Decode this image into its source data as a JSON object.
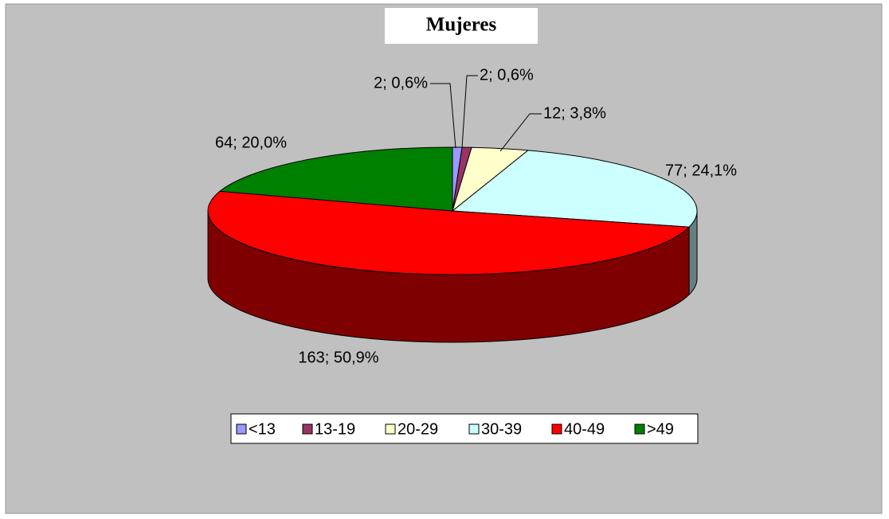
{
  "chart_data": {
    "type": "pie",
    "title": "Mujeres",
    "categories": [
      "<13",
      "13-19",
      "20-29",
      "30-39",
      "40-49",
      ">49"
    ],
    "values": [
      2,
      2,
      12,
      77,
      163,
      64
    ],
    "value_labels": [
      "2; 0,6%",
      "2; 0,6%",
      "12; 3,8%",
      "77; 24,1%",
      "163; 50,9%",
      "64; 20,0%"
    ],
    "colors": [
      "#9999ff",
      "#993366",
      "#ffffcc",
      "#ccffff",
      "#ff0000",
      "#008000"
    ],
    "legend": "bottom"
  }
}
